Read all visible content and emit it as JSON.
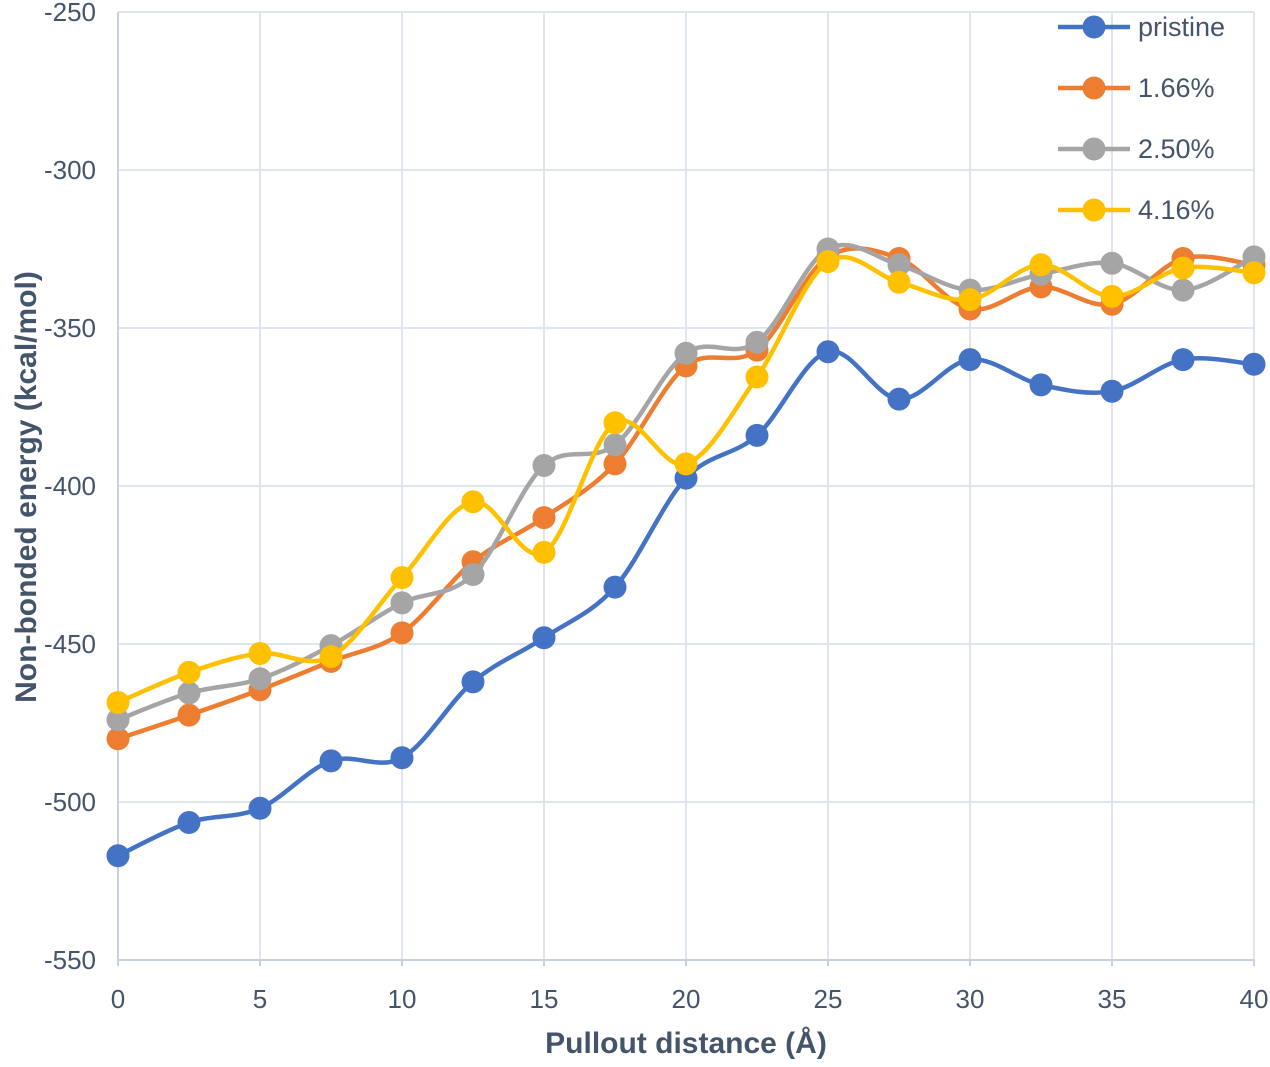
{
  "chart_data": {
    "type": "line",
    "title": "",
    "xlabel": "Pullout distance (Å)",
    "ylabel": "Non-bonded energy (kcal/mol)",
    "x": [
      0,
      2.5,
      5,
      7.5,
      10,
      12.5,
      15,
      17.5,
      20,
      22.5,
      25,
      27.5,
      30,
      32.5,
      35,
      37.5,
      40
    ],
    "xlim": [
      0,
      40
    ],
    "ylim": [
      -550,
      -250
    ],
    "x_ticks": [
      0,
      5,
      10,
      15,
      20,
      25,
      30,
      35,
      40
    ],
    "y_ticks": [
      -250,
      -300,
      -350,
      -400,
      -450,
      -500,
      -550
    ],
    "grid": true,
    "smooth": true,
    "legend_position": "top-right",
    "series": [
      {
        "name": "pristine",
        "color": "#4472C4",
        "values": [
          -517,
          -506.5,
          -502,
          -487,
          -486,
          -462,
          -448,
          -432,
          -397.5,
          -384,
          -357.5,
          -372.5,
          -360,
          -368,
          -370,
          -360,
          -361.5
        ]
      },
      {
        "name": "1.66%",
        "color": "#ED7D31",
        "values": [
          -480,
          -472.5,
          -464.5,
          -455.5,
          -446.5,
          -424,
          -410,
          -393,
          -362,
          -357,
          -327.5,
          -328,
          -344,
          -337,
          -342.5,
          -328,
          -330
        ]
      },
      {
        "name": "2.50%",
        "color": "#A5A5A5",
        "values": [
          -474,
          -465.5,
          -461,
          -450.5,
          -437,
          -428,
          -393.5,
          -387,
          -358,
          -354.5,
          -325,
          -330,
          -338,
          -333,
          -329.5,
          -338,
          -327.5
        ]
      },
      {
        "name": "4.16%",
        "color": "#FFC000",
        "values": [
          -468.5,
          -459,
          -453,
          -454,
          -429,
          -405,
          -421,
          -380,
          -393,
          -365.5,
          -329,
          -335.5,
          -341,
          -330,
          -340,
          -331,
          -332.5
        ]
      }
    ]
  },
  "styles": {
    "text_color": "#44546A",
    "grid_color": "#DEE5EF",
    "axis_color": "#C7D1E0",
    "background": "#FFFFFF"
  }
}
